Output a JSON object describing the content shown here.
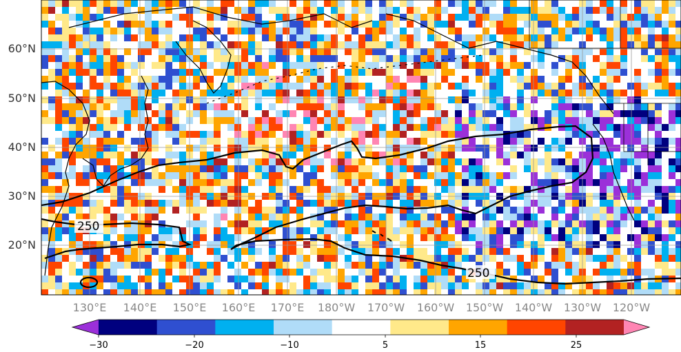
{
  "map": {
    "lat_labels": [
      "60°N",
      "50°N",
      "40°N",
      "30°N",
      "20°N"
    ],
    "lon_labels": [
      "130°E",
      "140°E",
      "150°E",
      "160°E",
      "170°E",
      "180°W",
      "170°W",
      "160°W",
      "150°W",
      "140°W",
      "130°W",
      "120°W"
    ],
    "contour_labels": [
      "250",
      "250"
    ],
    "contour_color": "#000000",
    "gridline_color": "#999999"
  },
  "colorbar": {
    "tick_labels": [
      "−30",
      "−20",
      "−10",
      "5",
      "15",
      "25"
    ],
    "bins": [
      {
        "color": "#9b30d9"
      },
      {
        "color": "#00007f"
      },
      {
        "color": "#2f4fd0"
      },
      {
        "color": "#00b0f0"
      },
      {
        "color": "#b0dcf8"
      },
      {
        "color": "#ffffff"
      },
      {
        "color": "#ffe98a"
      },
      {
        "color": "#ffa500"
      },
      {
        "color": "#ff4500"
      },
      {
        "color": "#b22222"
      },
      {
        "color": "#ff85b3"
      }
    ]
  }
}
